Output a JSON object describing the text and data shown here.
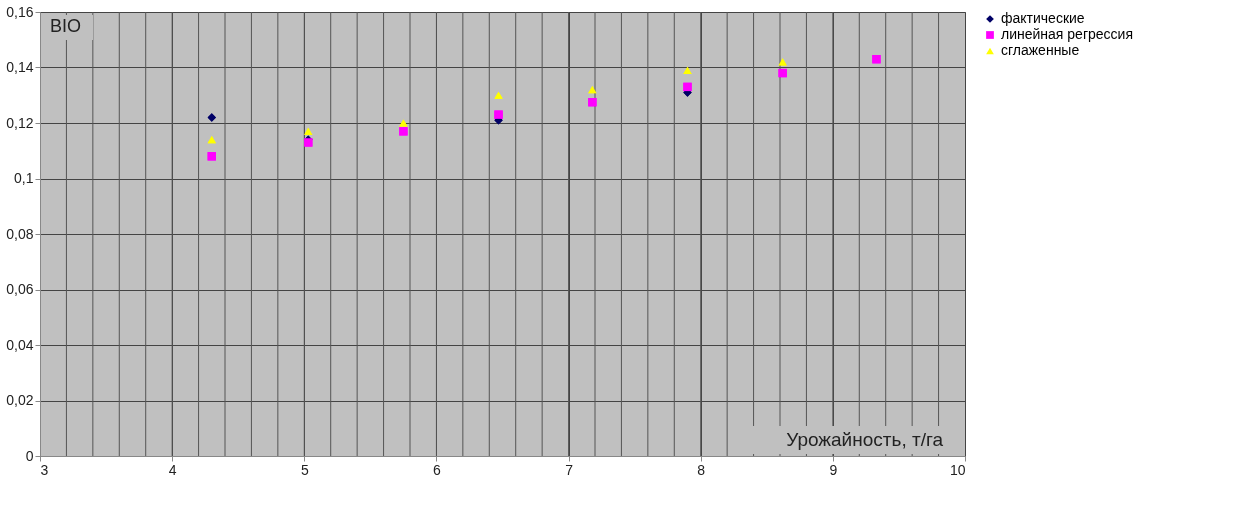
{
  "chart_data": {
    "type": "scatter",
    "xlabel": "Урожайность, т/га",
    "annotations": [
      "BIO"
    ],
    "x": [
      4.3,
      5.03,
      5.75,
      6.47,
      7.18,
      7.9,
      8.62,
      9.33
    ],
    "series": [
      {
        "name": "фактические",
        "color": "#000066",
        "marker": "diamond",
        "values": [
          0.122,
          0.114,
          null,
          0.121,
          null,
          0.131,
          null,
          null
        ]
      },
      {
        "name": "линейная регрессия",
        "color": "#ff00ff",
        "marker": "square",
        "values": [
          0.108,
          0.113,
          0.117,
          0.123,
          0.1275,
          0.133,
          0.138,
          0.143
        ]
      },
      {
        "name": "сглаженные",
        "color": "#ffff00",
        "marker": "triangle",
        "values": [
          0.114,
          0.117,
          0.12,
          0.13,
          0.132,
          0.139,
          0.142,
          null
        ]
      }
    ],
    "xlim": [
      3,
      10
    ],
    "xticks": [
      3,
      4,
      5,
      6,
      7,
      8,
      9,
      10
    ],
    "ylim": [
      0,
      0.16
    ],
    "yticks": [
      0,
      {
        "value": 0.02,
        "label": "0,02"
      },
      {
        "value": 0.04,
        "label": "0,04"
      },
      {
        "value": 0.06,
        "label": "0,06"
      },
      {
        "value": 0.08,
        "label": "0,08"
      },
      {
        "value": 0.1,
        "label": "0,1"
      },
      {
        "value": 0.12,
        "label": "0,12"
      },
      {
        "value": 0.14,
        "label": "0,14"
      },
      {
        "value": 0.16,
        "label": "0,16"
      }
    ],
    "grid": true,
    "legend": "right"
  }
}
